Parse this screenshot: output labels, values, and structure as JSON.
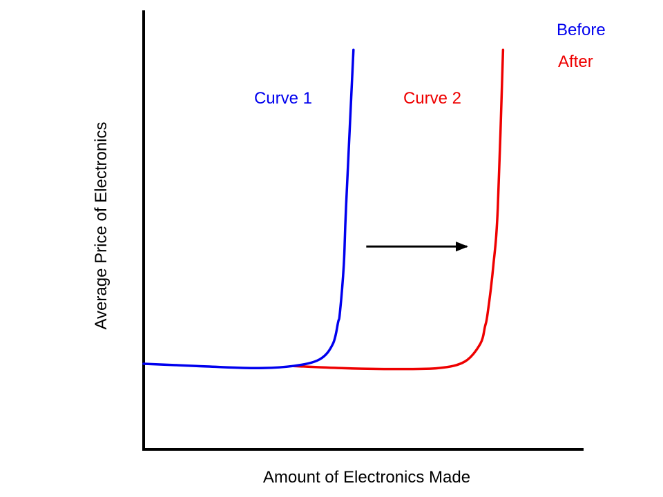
{
  "chart_data": {
    "type": "line",
    "xlabel": "Amount of Electronics Made",
    "ylabel": "Average Price of Electronics",
    "xlim": [
      0,
      100
    ],
    "ylim": [
      0,
      100
    ],
    "grid": false,
    "legend": {
      "placement": "top-right",
      "entries": [
        {
          "label": "Before",
          "color": "#0000ee"
        },
        {
          "label": "After",
          "color": "#ee0000"
        }
      ]
    },
    "series": [
      {
        "name": "Curve 1",
        "color": "#0000ee",
        "x": [
          0,
          12,
          25,
          34,
          40,
          43,
          44.2,
          44.6,
          45.5,
          46,
          47.7
        ],
        "y": [
          19.5,
          19,
          18.5,
          19,
          20.5,
          24,
          29,
          31,
          42,
          55,
          91
        ]
      },
      {
        "name": "Curve 2",
        "color": "#ee0000",
        "x": [
          34,
          45,
          57,
          67,
          73,
          76.5,
          77.6,
          78.2,
          79.5,
          80.5,
          81.7
        ],
        "y": [
          19,
          18.5,
          18.3,
          18.5,
          20,
          24,
          28,
          31,
          42,
          55,
          91
        ]
      }
    ],
    "annotations": [
      {
        "type": "arrow",
        "from": [
          50.6,
          46.2
        ],
        "to": [
          73.5,
          46.2
        ],
        "color": "#000000"
      }
    ]
  }
}
